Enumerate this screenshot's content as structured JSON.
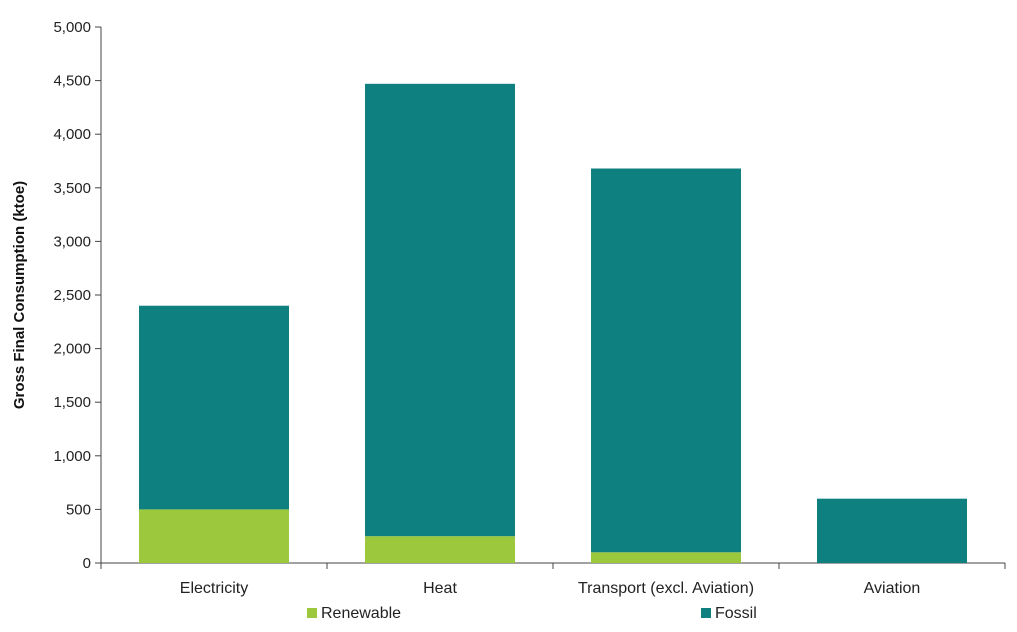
{
  "chart_data": {
    "type": "bar",
    "stacked": true,
    "categories": [
      "Electricity",
      "Heat",
      "Transport (excl. Aviation)",
      "Aviation"
    ],
    "series": [
      {
        "name": "Renewable",
        "values": [
          500,
          250,
          100,
          0
        ],
        "color": "#9bc83c"
      },
      {
        "name": "Fossil",
        "values": [
          1900,
          4220,
          3580,
          600
        ],
        "color": "#0f8080"
      }
    ],
    "ylabel": "Gross Final Consumption (ktoe)",
    "xlabel": "",
    "ylim": [
      0,
      5000
    ],
    "yticks": [
      0,
      500,
      1000,
      1500,
      2000,
      2500,
      3000,
      3500,
      4000,
      4500,
      5000
    ],
    "ytick_labels": [
      "0",
      "500",
      "1,000",
      "1,500",
      "2,000",
      "2,500",
      "3,000",
      "3,500",
      "4,000",
      "4,500",
      "5,000"
    ],
    "grid": false,
    "legend_position": "bottom"
  }
}
